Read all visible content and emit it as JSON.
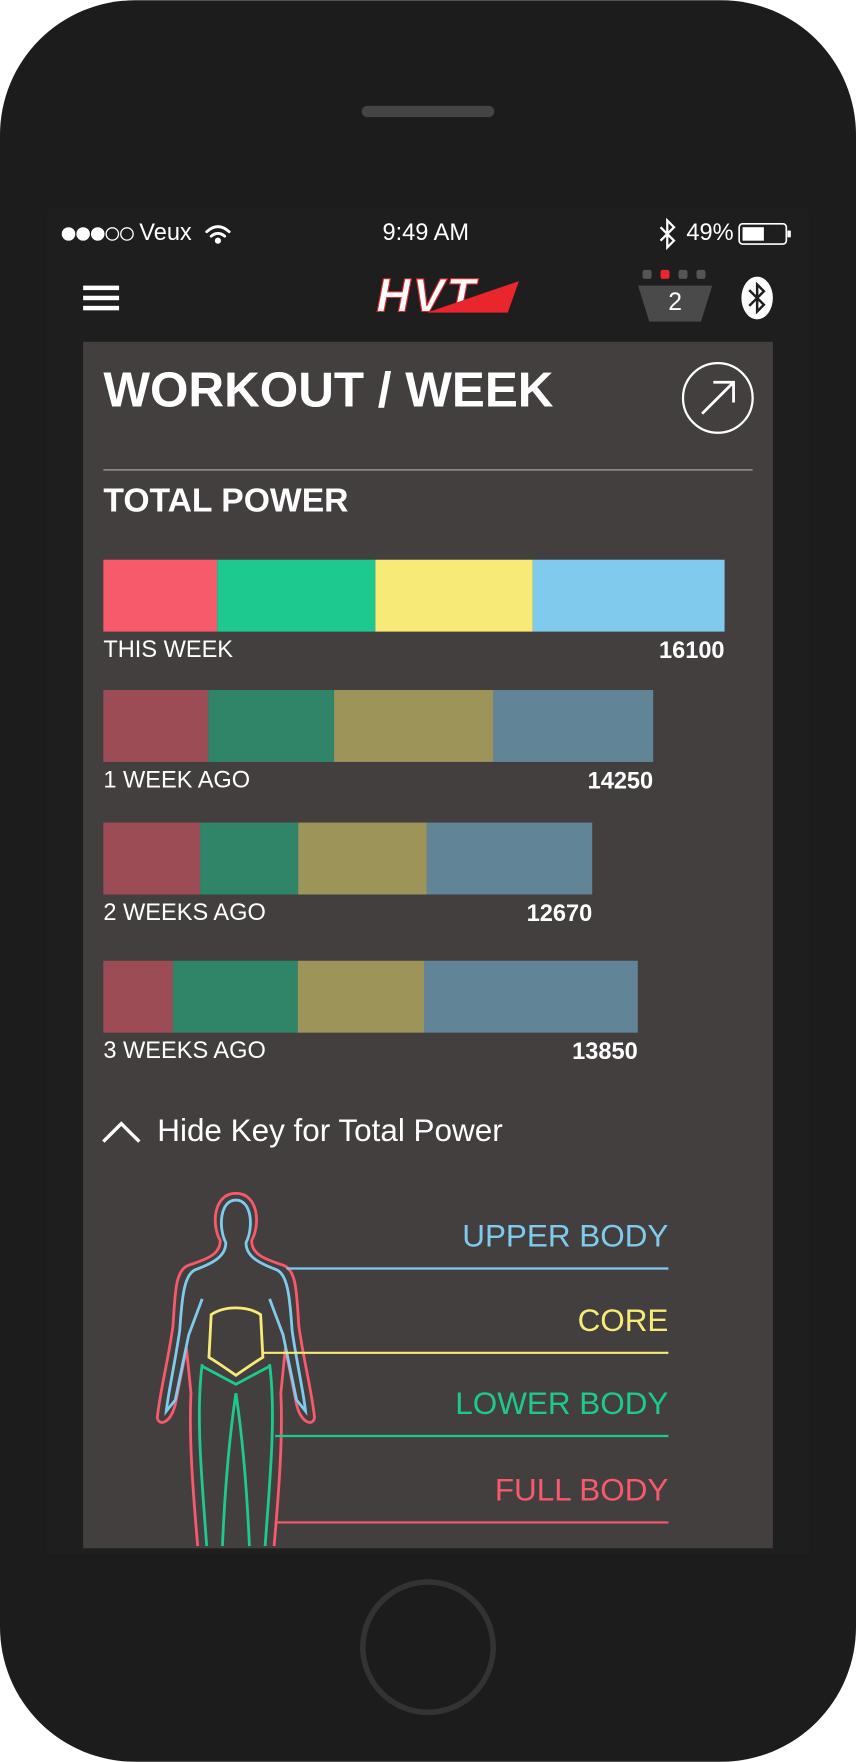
{
  "status_bar": {
    "carrier": "Veux",
    "time": "9:49 AM",
    "battery": "49%"
  },
  "header": {
    "logo": "HVT",
    "badge": "2"
  },
  "card": {
    "title": "WORKOUT / WEEK",
    "key_toggle": "Hide Key for Total Power"
  },
  "chart_data": {
    "type": "bar",
    "orientation": "horizontal",
    "stacked": true,
    "title": "TOTAL POWER",
    "categories": [
      "THIS WEEK",
      "1 WEEK AGO",
      "2 WEEKS AGO",
      "3 WEEKS AGO"
    ],
    "series": [
      {
        "name": "FULL BODY",
        "color": "#f65a6b",
        "values": [
          2950,
          2720,
          2510,
          1800
        ]
      },
      {
        "name": "LOWER BODY",
        "color": "#1dc98f",
        "values": [
          4100,
          3260,
          2540,
          3240
        ]
      },
      {
        "name": "CORE",
        "color": "#f7ea76",
        "values": [
          4080,
          4120,
          3330,
          3270
        ]
      },
      {
        "name": "UPPER BODY",
        "color": "#7fcbee",
        "values": [
          4970,
          4150,
          4290,
          5540
        ]
      }
    ],
    "totals": [
      16100,
      14250,
      12670,
      13850
    ]
  }
}
